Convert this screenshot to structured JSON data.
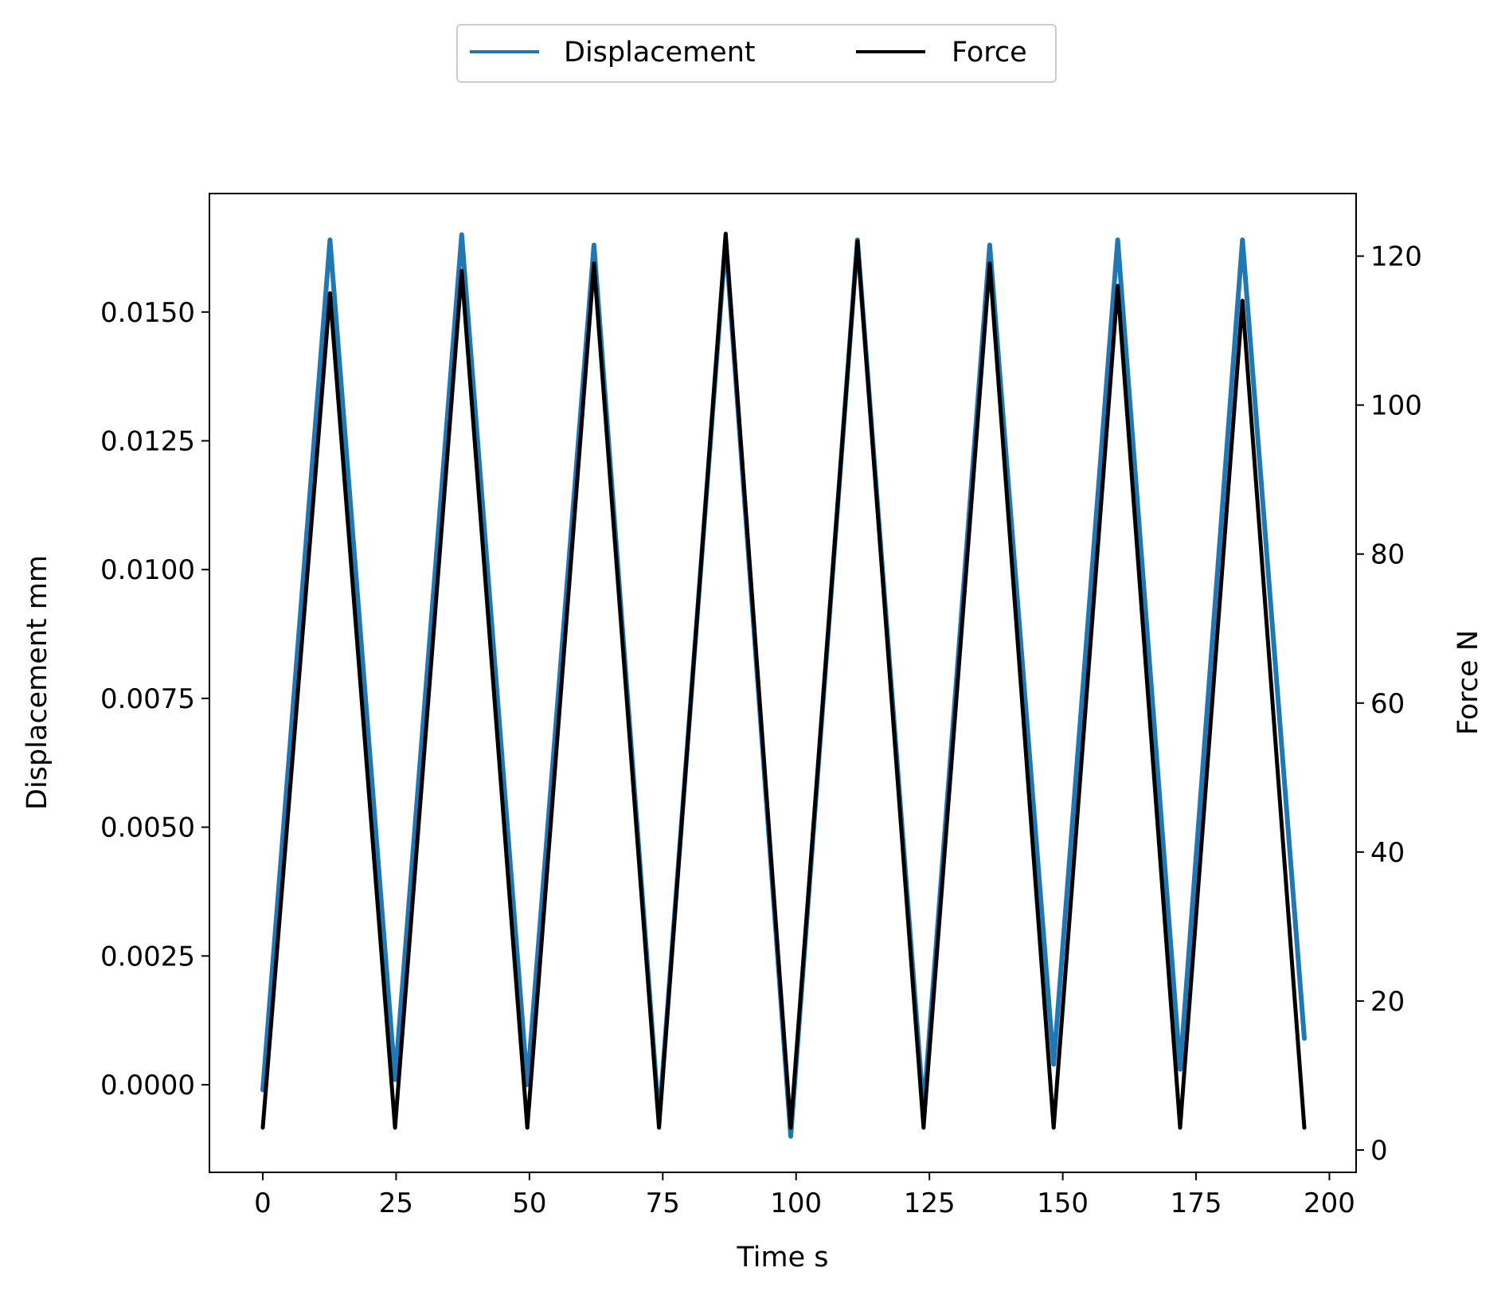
{
  "chart_data": {
    "type": "line",
    "xlabel": "Time s",
    "ylabel_left": "Displacement mm",
    "ylabel_right": "Force N",
    "xlim": [
      -10,
      205
    ],
    "ylim_left": [
      -0.0017,
      0.0173
    ],
    "ylim_right": [
      -3,
      128.4
    ],
    "x_ticks": [
      0,
      25,
      50,
      75,
      100,
      125,
      150,
      175,
      200
    ],
    "x_tick_labels": [
      "0",
      "25",
      "50",
      "75",
      "100",
      "125",
      "150",
      "175",
      "200"
    ],
    "y_left_ticks": [
      0.0,
      0.0025,
      0.005,
      0.0075,
      0.01,
      0.0125,
      0.015
    ],
    "y_left_tick_labels": [
      "0.0000",
      "0.0025",
      "0.0050",
      "0.0075",
      "0.0100",
      "0.0125",
      "0.0150"
    ],
    "y_right_ticks": [
      0,
      20,
      40,
      60,
      80,
      100,
      120
    ],
    "y_right_tick_labels": [
      "0",
      "20",
      "40",
      "60",
      "80",
      "100",
      "120"
    ],
    "legend_position": "top-center-outside",
    "grid": false,
    "series": [
      {
        "name": "Displacement",
        "axis": "left",
        "color": "#1f77b4",
        "x": [
          0,
          12.6,
          24.8,
          37.3,
          49.6,
          62.1,
          74.3,
          86.8,
          99.0,
          111.5,
          123.9,
          136.3,
          148.3,
          160.3,
          172.0,
          183.7,
          195.3
        ],
        "y": [
          -0.0001,
          0.0164,
          0.0001,
          0.0165,
          0.0,
          0.0163,
          -0.0007,
          0.0164,
          -0.001,
          0.0164,
          -0.0005,
          0.0163,
          0.0004,
          0.0164,
          0.0003,
          0.0164,
          0.0009
        ]
      },
      {
        "name": "Force",
        "axis": "right",
        "color": "#000000",
        "x": [
          0,
          12.6,
          24.8,
          37.3,
          49.6,
          62.1,
          74.3,
          86.8,
          99.0,
          111.5,
          123.9,
          136.3,
          148.3,
          160.3,
          172.0,
          183.7,
          195.3
        ],
        "y": [
          3,
          115,
          3,
          118,
          3,
          119,
          3,
          123,
          3,
          122,
          3,
          119,
          3,
          116,
          3,
          114,
          3
        ]
      }
    ]
  }
}
